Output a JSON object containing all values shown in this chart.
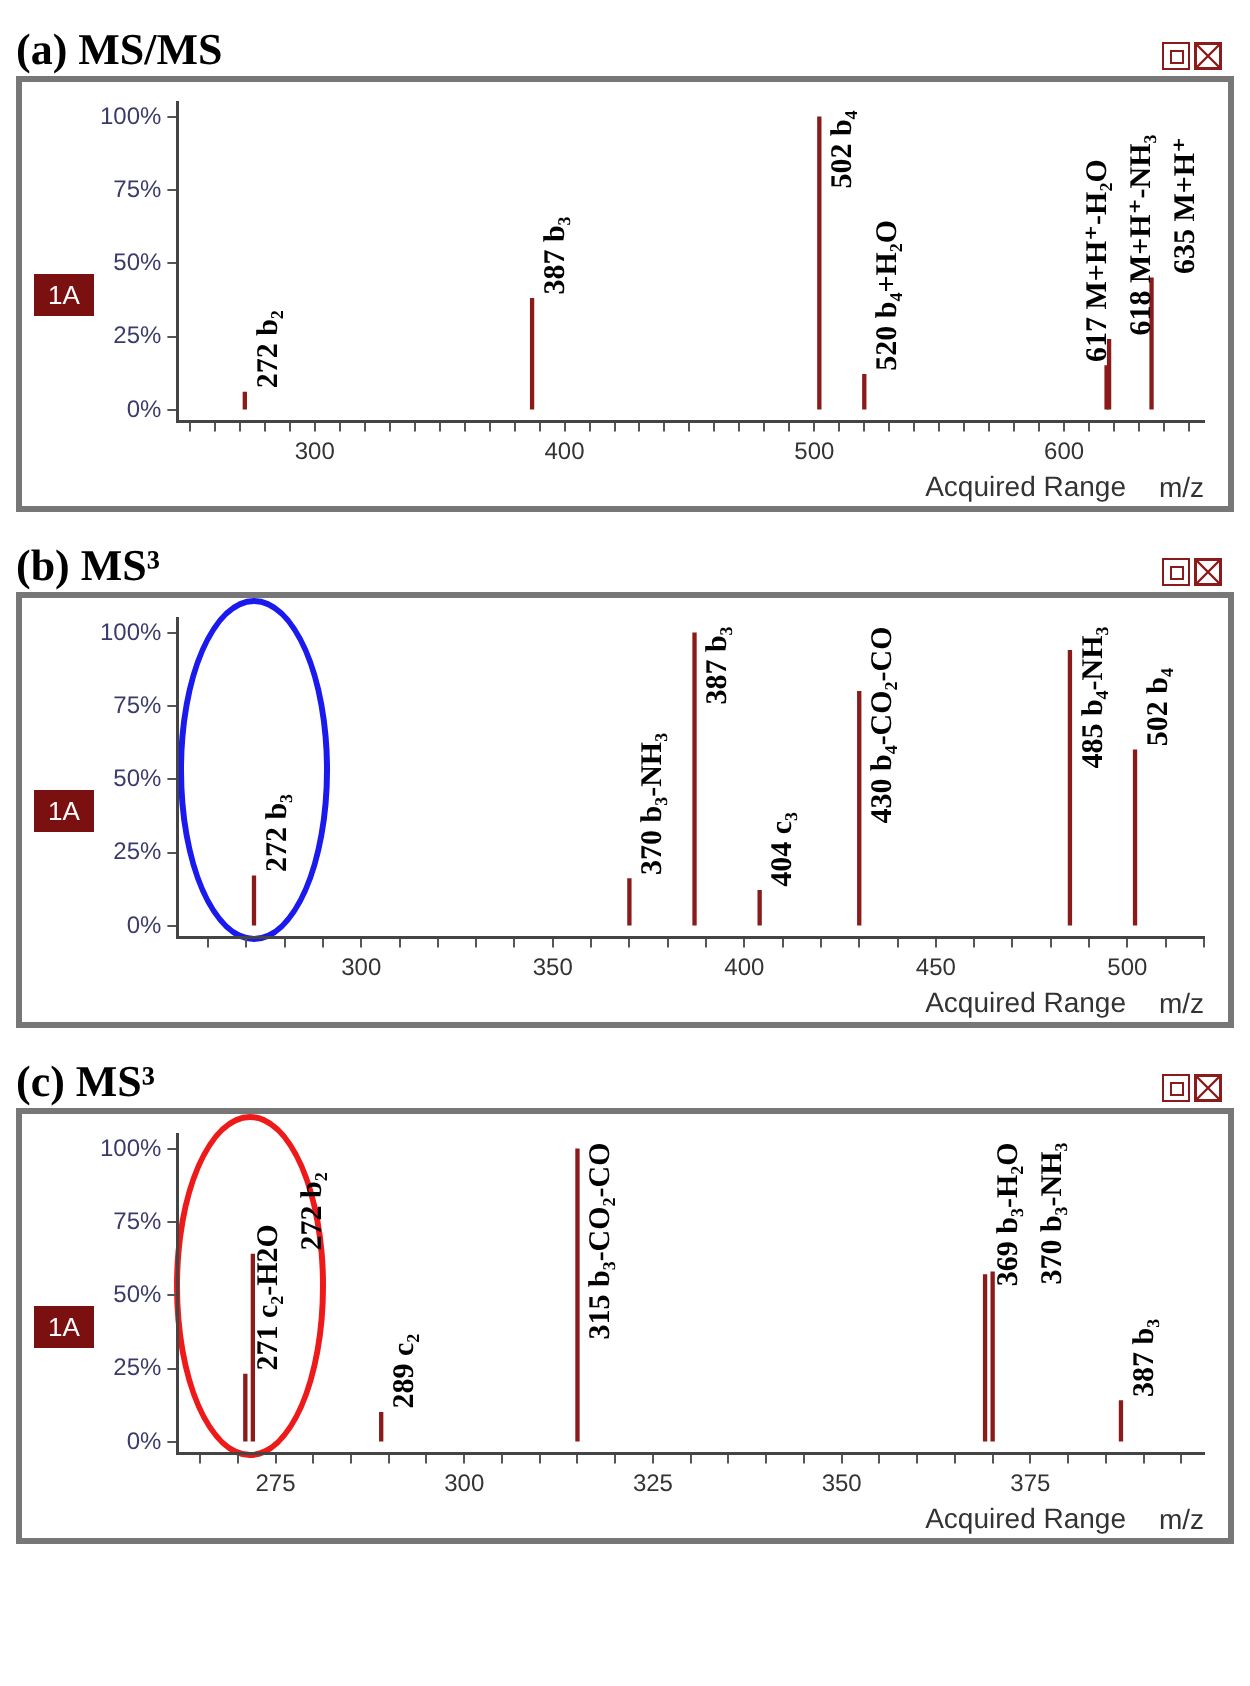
{
  "chart_data": [
    {
      "type": "bar",
      "title": "(a) MS/MS",
      "ylabel": "1A",
      "xlabel": "m/z",
      "x": [
        272,
        387,
        502,
        520,
        617,
        618,
        635
      ],
      "values": [
        6,
        38,
        100,
        12,
        15,
        24,
        45
      ],
      "color": "#8b1a1a",
      "xlim": [
        245,
        656
      ],
      "xticks": [
        {
          "value": 250,
          "label": null
        },
        {
          "value": 260,
          "label": null
        },
        {
          "value": 270,
          "label": null
        },
        {
          "value": 280,
          "label": null
        },
        {
          "value": 290,
          "label": null
        },
        300,
        {
          "value": 310,
          "label": null
        },
        {
          "value": 320,
          "label": null
        },
        {
          "value": 330,
          "label": null
        },
        {
          "value": 340,
          "label": null
        },
        {
          "value": 350,
          "label": null
        },
        {
          "value": 360,
          "label": null
        },
        {
          "value": 370,
          "label": null
        },
        {
          "value": 380,
          "label": null
        },
        {
          "value": 390,
          "label": null
        },
        400,
        {
          "value": 410,
          "label": null
        },
        {
          "value": 420,
          "label": null
        },
        {
          "value": 430,
          "label": null
        },
        {
          "value": 440,
          "label": null
        },
        {
          "value": 450,
          "label": null
        },
        {
          "value": 460,
          "label": null
        },
        {
          "value": 470,
          "label": null
        },
        {
          "value": 480,
          "label": null
        },
        {
          "value": 490,
          "label": null
        },
        500,
        {
          "value": 510,
          "label": null
        },
        {
          "value": 520,
          "label": null
        },
        {
          "value": 530,
          "label": null
        },
        {
          "value": 540,
          "label": null
        },
        {
          "value": 550,
          "label": null
        },
        {
          "value": 560,
          "label": null
        },
        {
          "value": 570,
          "label": null
        },
        {
          "value": 580,
          "label": null
        },
        {
          "value": 590,
          "label": null
        },
        600,
        {
          "value": 610,
          "label": null
        },
        {
          "value": 620,
          "label": null
        },
        {
          "value": 630,
          "label": null
        },
        {
          "value": 640,
          "label": null
        },
        {
          "value": 650,
          "label": null
        }
      ],
      "ylim": [
        -4,
        105
      ],
      "yticks": [
        {
          "value": 0,
          "label": "0%"
        },
        {
          "value": 25,
          "label": "25%"
        },
        {
          "value": 50,
          "label": "50%"
        },
        {
          "value": 75,
          "label": "75%"
        },
        {
          "value": 100,
          "label": "100%"
        }
      ],
      "annotations": [
        {
          "text": "272 b₂",
          "x": 272,
          "y": 6
        },
        {
          "text": "387 b₃",
          "x": 387,
          "y": 38
        },
        {
          "text": "502 b₄",
          "x": 502,
          "y": 100
        },
        {
          "text": "520 b₄+H₂O",
          "x": 520,
          "y": 12
        },
        {
          "text": "617 M+H⁺-H₂O",
          "x": 617,
          "y": 15
        },
        {
          "text": "618 M+H⁺-NH₃",
          "x": 618,
          "y": 24
        },
        {
          "text": "635 M+H⁺",
          "x": 635,
          "y": 45
        },
        "Acquired Range"
      ]
    },
    {
      "type": "bar",
      "title": "(b) MS³",
      "ylabel": "1A",
      "xlabel": "m/z",
      "x": [
        272,
        370,
        387,
        404,
        430,
        485,
        502
      ],
      "values": [
        17,
        16,
        100,
        12,
        80,
        94,
        60
      ],
      "color": "#8b1a1a",
      "xlim": [
        252,
        520
      ],
      "xticks": [
        {
          "value": 260,
          "label": null
        },
        {
          "value": 270,
          "label": null
        },
        {
          "value": 280,
          "label": null
        },
        {
          "value": 290,
          "label": null
        },
        300,
        {
          "value": 310,
          "label": null
        },
        {
          "value": 320,
          "label": null
        },
        {
          "value": 330,
          "label": null
        },
        {
          "value": 340,
          "label": null
        },
        350,
        {
          "value": 360,
          "label": null
        },
        {
          "value": 370,
          "label": null
        },
        {
          "value": 380,
          "label": null
        },
        {
          "value": 390,
          "label": null
        },
        400,
        {
          "value": 410,
          "label": null
        },
        {
          "value": 420,
          "label": null
        },
        {
          "value": 430,
          "label": null
        },
        {
          "value": 440,
          "label": null
        },
        450,
        {
          "value": 460,
          "label": null
        },
        {
          "value": 470,
          "label": null
        },
        {
          "value": 480,
          "label": null
        },
        {
          "value": 490,
          "label": null
        },
        500,
        {
          "value": 510,
          "label": null
        },
        {
          "value": 520,
          "label": null
        }
      ],
      "ylim": [
        -4,
        105
      ],
      "yticks": [
        {
          "value": 0,
          "label": "0%"
        },
        {
          "value": 25,
          "label": "25%"
        },
        {
          "value": 50,
          "label": "50%"
        },
        {
          "value": 75,
          "label": "75%"
        },
        {
          "value": 100,
          "label": "100%"
        }
      ],
      "annotations": [
        {
          "text": "272 b₃",
          "x": 272,
          "y": 17
        },
        {
          "text": "370 b₃-NH₃",
          "x": 370,
          "y": 16
        },
        {
          "text": "387 b₃",
          "x": 387,
          "y": 100
        },
        {
          "text": "404 c₃",
          "x": 404,
          "y": 12
        },
        {
          "text": "430 b₄-CO₂-CO",
          "x": 430,
          "y": 80
        },
        {
          "text": "485 b₄-NH₃",
          "x": 485,
          "y": 94
        },
        {
          "text": "502 b₄",
          "x": 502,
          "y": 60
        },
        "Acquired Range"
      ]
    },
    {
      "type": "bar",
      "title": "(c) MS³",
      "ylabel": "1A",
      "xlabel": "m/z",
      "x": [
        271,
        272,
        289,
        315,
        369,
        370,
        387
      ],
      "values": [
        23,
        64,
        10,
        100,
        57,
        58,
        14
      ],
      "color": "#8b1a1a",
      "xlim": [
        262,
        398
      ],
      "xticks": [
        {
          "value": 265,
          "label": null
        },
        {
          "value": 270,
          "label": null
        },
        275,
        {
          "value": 280,
          "label": null
        },
        {
          "value": 285,
          "label": null
        },
        {
          "value": 290,
          "label": null
        },
        {
          "value": 295,
          "label": null
        },
        300,
        {
          "value": 305,
          "label": null
        },
        {
          "value": 310,
          "label": null
        },
        {
          "value": 315,
          "label": null
        },
        {
          "value": 320,
          "label": null
        },
        325,
        {
          "value": 330,
          "label": null
        },
        {
          "value": 335,
          "label": null
        },
        {
          "value": 340,
          "label": null
        },
        {
          "value": 345,
          "label": null
        },
        350,
        {
          "value": 355,
          "label": null
        },
        {
          "value": 360,
          "label": null
        },
        {
          "value": 365,
          "label": null
        },
        {
          "value": 370,
          "label": null
        },
        375,
        {
          "value": 380,
          "label": null
        },
        {
          "value": 385,
          "label": null
        },
        {
          "value": 390,
          "label": null
        },
        {
          "value": 395,
          "label": null
        }
      ],
      "ylim": [
        -4,
        105
      ],
      "yticks": [
        {
          "value": 0,
          "label": "0%"
        },
        {
          "value": 25,
          "label": "25%"
        },
        {
          "value": 50,
          "label": "50%"
        },
        {
          "value": 75,
          "label": "75%"
        },
        {
          "value": 100,
          "label": "100%"
        }
      ],
      "annotations": [
        {
          "text": "271 c₂-H2O",
          "x": 271,
          "y": 23
        },
        {
          "text": "272 b₂",
          "x": 272,
          "y": 64
        },
        {
          "text": "289 c₂",
          "x": 289,
          "y": 10
        },
        {
          "text": "315 b₃-CO₂-CO",
          "x": 315,
          "y": 100
        },
        {
          "text": "369 b₃-H₂O",
          "x": 369,
          "y": 57
        },
        {
          "text": "370 b₃-NH₃",
          "x": 370,
          "y": 58
        },
        {
          "text": "387 b₃",
          "x": 387,
          "y": 14
        },
        "Acquired Range"
      ]
    }
  ]
}
